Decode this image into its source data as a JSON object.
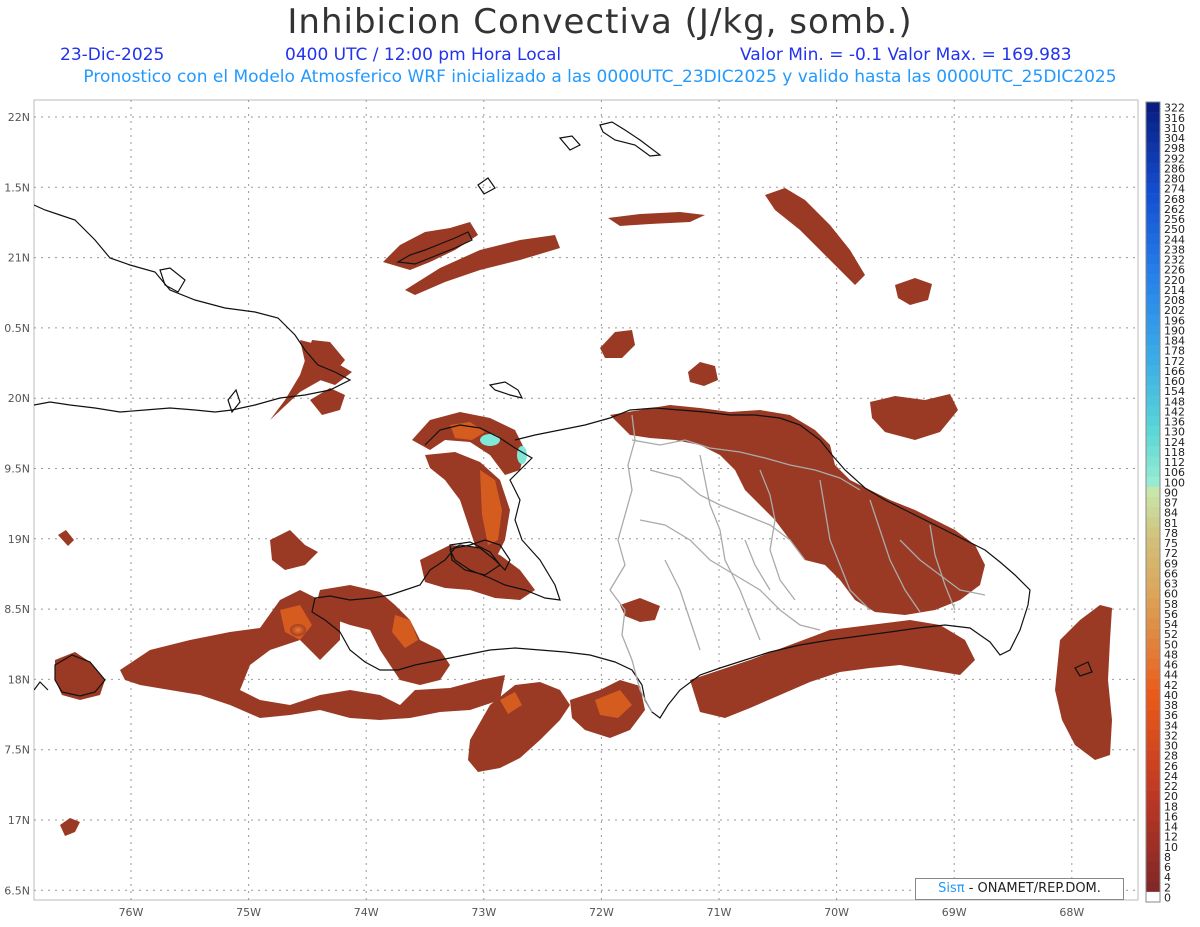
{
  "header": {
    "title": "Inhibicion Convectiva (J/kg, somb.)",
    "date": "23-Dic-2025",
    "time": "0400 UTC / 12:00 pm Hora Local",
    "minmax": "Valor Min. = -0.1  Valor Max. = 169.983",
    "description": "Pronostico con el Modelo Atmosferico WRF inicializado a las 0000UTC_23DIC2025 y valido hasta las  0000UTC_25DIC2025"
  },
  "axes": {
    "lat_labels": [
      "22N",
      "1.5N",
      "21N",
      "0.5N",
      "20N",
      "9.5N",
      "19N",
      "8.5N",
      "18N",
      "7.5N",
      "17N",
      "6.5N"
    ],
    "lon_labels": [
      "76W",
      "75W",
      "74W",
      "73W",
      "72W",
      "71W",
      "70W",
      "69W",
      "68W"
    ]
  },
  "colorbar": {
    "labels": [
      "322",
      "316",
      "310",
      "304",
      "298",
      "292",
      "286",
      "280",
      "274",
      "268",
      "262",
      "256",
      "250",
      "244",
      "238",
      "232",
      "226",
      "220",
      "214",
      "208",
      "202",
      "196",
      "190",
      "184",
      "178",
      "172",
      "166",
      "160",
      "154",
      "148",
      "142",
      "136",
      "130",
      "124",
      "118",
      "112",
      "106",
      "100",
      "90",
      "87",
      "84",
      "81",
      "78",
      "75",
      "72",
      "69",
      "66",
      "63",
      "60",
      "58",
      "56",
      "54",
      "52",
      "50",
      "48",
      "46",
      "44",
      "42",
      "40",
      "38",
      "36",
      "34",
      "32",
      "30",
      "28",
      "26",
      "24",
      "22",
      "20",
      "18",
      "16",
      "14",
      "12",
      "10",
      "8",
      "6",
      "4",
      "2",
      "0"
    ]
  },
  "credit": {
    "brand": "Sisπ",
    "org": " - ONAMET/REP.DOM."
  },
  "colors": {
    "field_main": "#9a3a24",
    "field_orange": "#e56a1e",
    "field_cyan": "#7fe8d6",
    "coast": "#111111",
    "borders": "#aaaaaa"
  }
}
